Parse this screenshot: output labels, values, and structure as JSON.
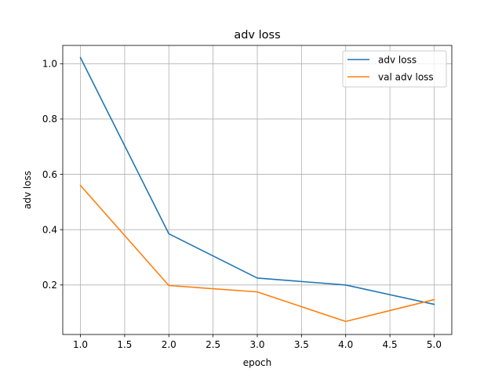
{
  "chart_data": {
    "type": "line",
    "title": "adv loss",
    "xlabel": "epoch",
    "ylabel": "adv loss",
    "x": [
      1.0,
      2.0,
      3.0,
      4.0,
      5.0
    ],
    "series": [
      {
        "name": "adv loss",
        "color": "#1f77b4",
        "values": [
          1.022,
          0.385,
          0.225,
          0.2,
          0.13
        ]
      },
      {
        "name": "val adv loss",
        "color": "#ff7f0e",
        "values": [
          0.56,
          0.198,
          0.175,
          0.068,
          0.147
        ]
      }
    ],
    "xlim": [
      0.8,
      5.2
    ],
    "ylim": [
      0.021,
      1.066
    ],
    "xticks": [
      1.0,
      1.5,
      2.0,
      2.5,
      3.0,
      3.5,
      4.0,
      4.5,
      5.0
    ],
    "xtick_labels": [
      "1.0",
      "1.5",
      "2.0",
      "2.5",
      "3.0",
      "3.5",
      "4.0",
      "4.5",
      "5.0"
    ],
    "yticks": [
      0.2,
      0.4,
      0.6,
      0.8,
      1.0
    ],
    "ytick_labels": [
      "0.2",
      "0.4",
      "0.6",
      "0.8",
      "1.0"
    ],
    "grid": true,
    "legend_position": "upper-right"
  }
}
